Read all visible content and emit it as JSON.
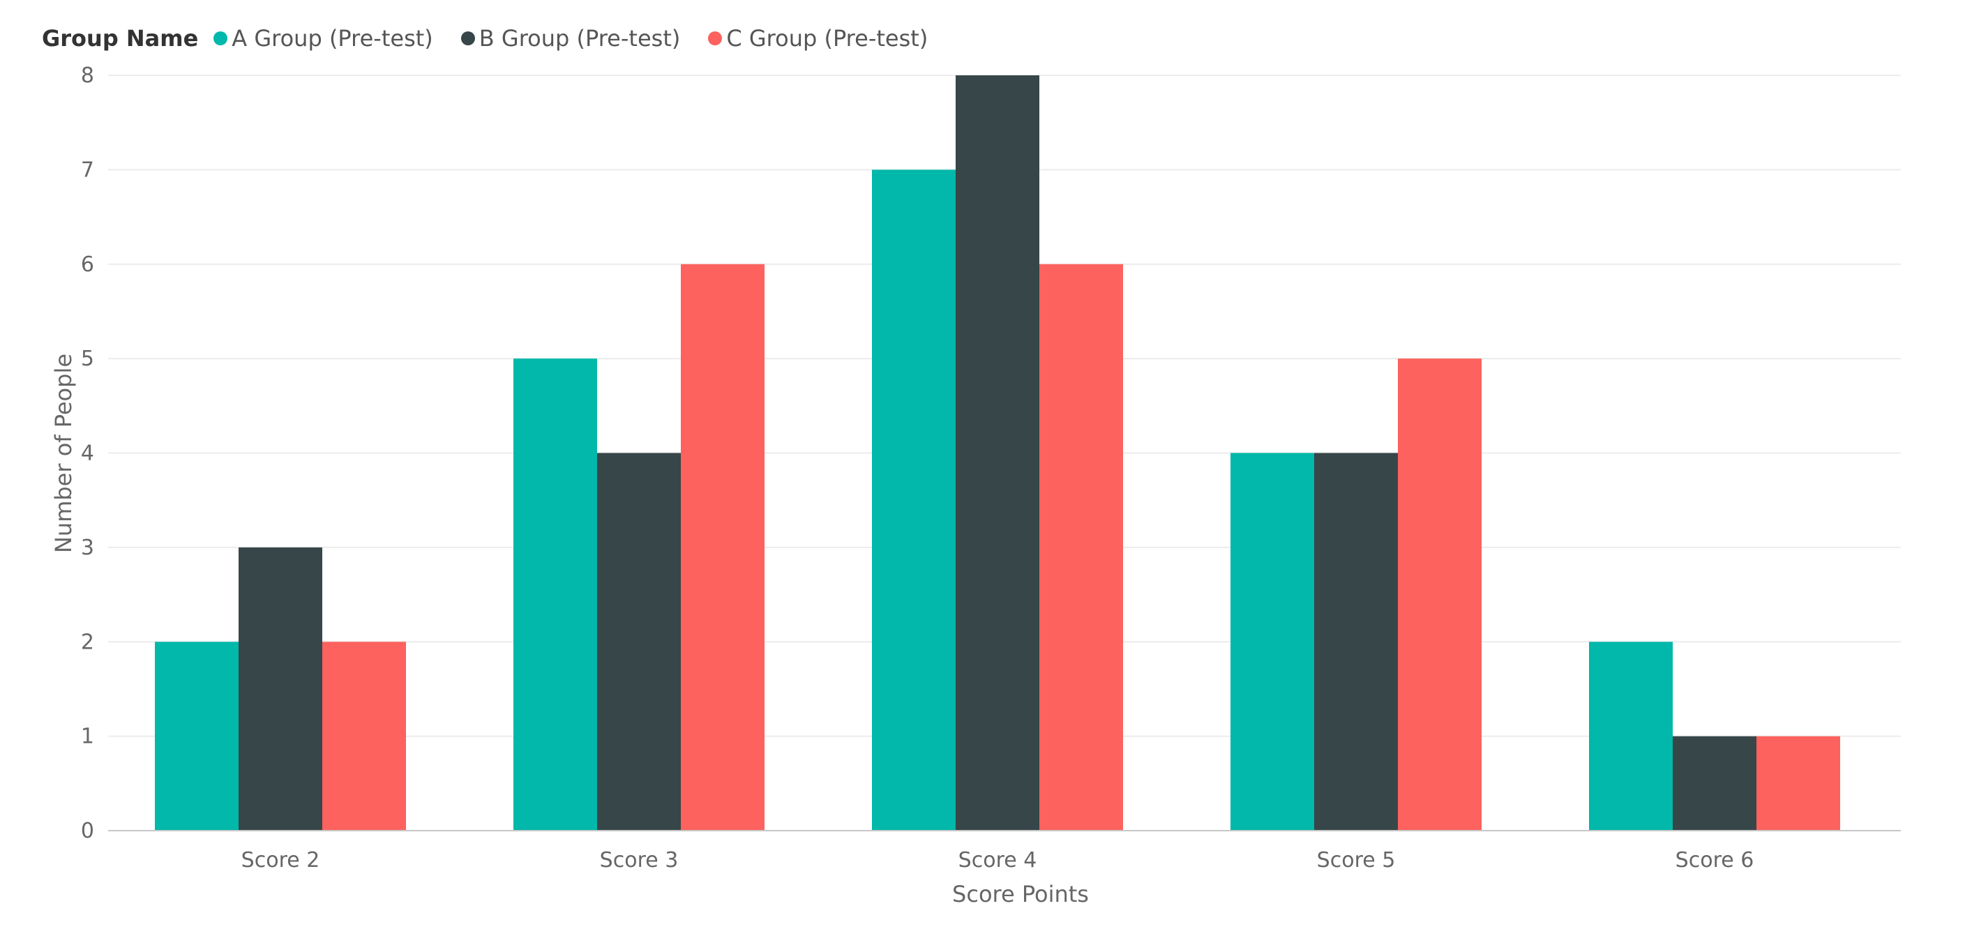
{
  "legend": {
    "title": "Group Name"
  },
  "chart_data": {
    "type": "bar",
    "categories": [
      "Score 2",
      "Score 3",
      "Score 4",
      "Score 5",
      "Score 6"
    ],
    "series": [
      {
        "name": "A Group (Pre-test)",
        "color": "#01B8AA",
        "values": [
          2,
          5,
          7,
          4,
          2
        ]
      },
      {
        "name": "B Group (Pre-test)",
        "color": "#374649",
        "values": [
          3,
          4,
          8,
          4,
          1
        ]
      },
      {
        "name": "C Group (Pre-test)",
        "color": "#FD625E",
        "values": [
          2,
          6,
          6,
          5,
          1
        ]
      }
    ],
    "xlabel": "Score Points",
    "ylabel": "Number of People",
    "ylim": [
      0,
      8
    ],
    "yticks": [
      0,
      1,
      2,
      3,
      4,
      5,
      6,
      7,
      8
    ],
    "grid": true,
    "legend_position": "top-left"
  }
}
